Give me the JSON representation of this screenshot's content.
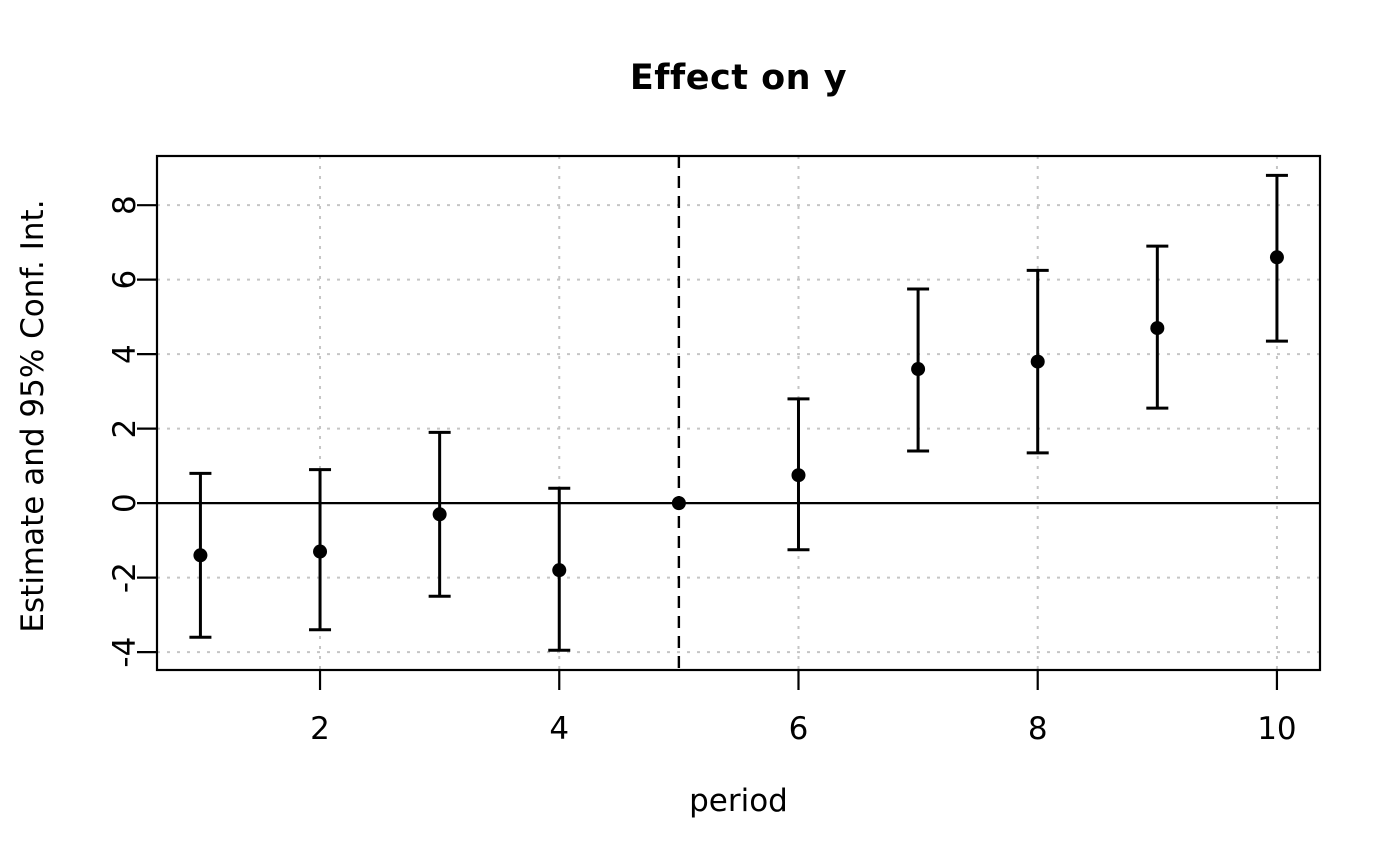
{
  "chart_data": {
    "type": "scatter",
    "title": "Effect on y",
    "xlabel": "period",
    "ylabel": "Estimate and 95% Conf. Int.",
    "x": [
      1,
      2,
      3,
      4,
      5,
      6,
      7,
      8,
      9,
      10
    ],
    "series": [
      {
        "name": "estimate",
        "values": [
          -1.4,
          -1.3,
          -0.3,
          -1.8,
          0,
          0.75,
          3.6,
          3.8,
          4.7,
          6.6
        ]
      },
      {
        "name": "ci_lower",
        "values": [
          -3.6,
          -3.4,
          -2.5,
          -3.95,
          null,
          -1.25,
          1.4,
          1.35,
          2.55,
          4.35
        ]
      },
      {
        "name": "ci_upper",
        "values": [
          0.8,
          0.9,
          1.9,
          0.4,
          null,
          2.8,
          5.75,
          6.25,
          6.9,
          8.8
        ]
      }
    ],
    "x_ticks": [
      2,
      4,
      6,
      8,
      10
    ],
    "y_ticks": [
      -4,
      -2,
      0,
      2,
      4,
      6,
      8
    ],
    "xlim": [
      0.637,
      10.36
    ],
    "ylim": [
      -4.48,
      9.32
    ],
    "reference_hline_y": 0,
    "reference_vline_x": 5,
    "grid": true,
    "legend_position": "none",
    "colors": {
      "point": "#000000",
      "error_bar": "#000000",
      "grid": "#c5c5c5",
      "axis": "#000000",
      "reference_lines": "#000000",
      "background": "#ffffff"
    }
  }
}
